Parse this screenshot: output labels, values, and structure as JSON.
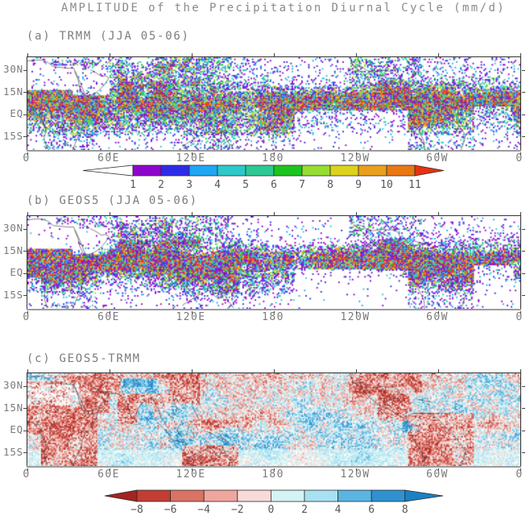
{
  "figure_title": "AMPLITUDE of the Precipitation Diurnal Cycle (mm/d)",
  "chart_data": {
    "type": "heatmap",
    "title": "AMPLITUDE of the Precipitation Diurnal Cycle (mm/d)",
    "units": "mm/d",
    "panels": [
      {
        "label": "(a) TRMM (JJA 05-06)",
        "colorbar": "amplitude"
      },
      {
        "label": "(b) GEOS5 (JJA 05-06)",
        "colorbar": "amplitude"
      },
      {
        "label": "(c) GEOS5-TRMM",
        "colorbar": "difference"
      }
    ],
    "x_axis": {
      "tick_labels": [
        "0",
        "60E",
        "120E",
        "180",
        "120W",
        "60W",
        "0"
      ],
      "range_deg": [
        0,
        360
      ]
    },
    "y_axis": {
      "tick_labels": [
        "30N",
        "15N",
        "EQ",
        "15S"
      ],
      "range_deg": [
        -24,
        39
      ]
    },
    "colorbars": {
      "amplitude": {
        "levels": [
          1,
          2,
          3,
          4,
          5,
          6,
          7,
          8,
          9,
          10,
          11
        ],
        "tick_labels": [
          "1",
          "2",
          "3",
          "4",
          "5",
          "6",
          "7",
          "8",
          "9",
          "10",
          "11"
        ],
        "segment_colors": [
          "#8E06CC",
          "#2C2CE8",
          "#20A6F2",
          "#2EC8C8",
          "#2EC894",
          "#1EC41E",
          "#96DC32",
          "#DCD21E",
          "#E8A01E",
          "#E87814"
        ],
        "under_color": "#FFFFFF",
        "over_color": "#E83214"
      },
      "difference": {
        "levels": [
          -8,
          -6,
          -4,
          -2,
          0,
          2,
          4,
          6,
          8
        ],
        "tick_labels": [
          "−8",
          "−6",
          "−4",
          "−2",
          "0",
          "2",
          "4",
          "6",
          "8"
        ],
        "segment_colors": [
          "#C33D33",
          "#DB7266",
          "#EFA69E",
          "#F8DBD8",
          "#D6F3F3",
          "#A8E2F2",
          "#5AB5E2",
          "#2E92D0"
        ],
        "under_color": "#A32421",
        "over_color": "#1B80C4"
      }
    }
  }
}
